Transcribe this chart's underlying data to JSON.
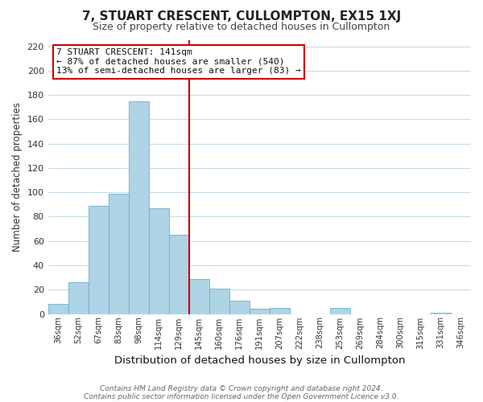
{
  "title": "7, STUART CRESCENT, CULLOMPTON, EX15 1XJ",
  "subtitle": "Size of property relative to detached houses in Cullompton",
  "xlabel": "Distribution of detached houses by size in Cullompton",
  "ylabel": "Number of detached properties",
  "bar_labels": [
    "36sqm",
    "52sqm",
    "67sqm",
    "83sqm",
    "98sqm",
    "114sqm",
    "129sqm",
    "145sqm",
    "160sqm",
    "176sqm",
    "191sqm",
    "207sqm",
    "222sqm",
    "238sqm",
    "253sqm",
    "269sqm",
    "284sqm",
    "300sqm",
    "315sqm",
    "331sqm",
    "346sqm"
  ],
  "bar_heights": [
    8,
    26,
    89,
    99,
    175,
    87,
    65,
    29,
    21,
    11,
    4,
    5,
    0,
    0,
    5,
    0,
    0,
    0,
    0,
    1,
    0
  ],
  "bar_color": "#aed4e6",
  "bar_edge_color": "#6ab0cc",
  "vline_x_index": 7,
  "vline_color": "#cc0000",
  "annotation_title": "7 STUART CRESCENT: 141sqm",
  "annotation_line1": "← 87% of detached houses are smaller (540)",
  "annotation_line2": "13% of semi-detached houses are larger (83) →",
  "annotation_box_facecolor": "#ffffff",
  "annotation_box_edgecolor": "#cc0000",
  "ylim": [
    0,
    225
  ],
  "yticks": [
    0,
    20,
    40,
    60,
    80,
    100,
    120,
    140,
    160,
    180,
    200,
    220
  ],
  "footer1": "Contains HM Land Registry data © Crown copyright and database right 2024.",
  "footer2": "Contains public sector information licensed under the Open Government Licence v3.0.",
  "background_color": "#ffffff",
  "grid_color": "#c8dce8",
  "title_fontsize": 11,
  "subtitle_fontsize": 9
}
